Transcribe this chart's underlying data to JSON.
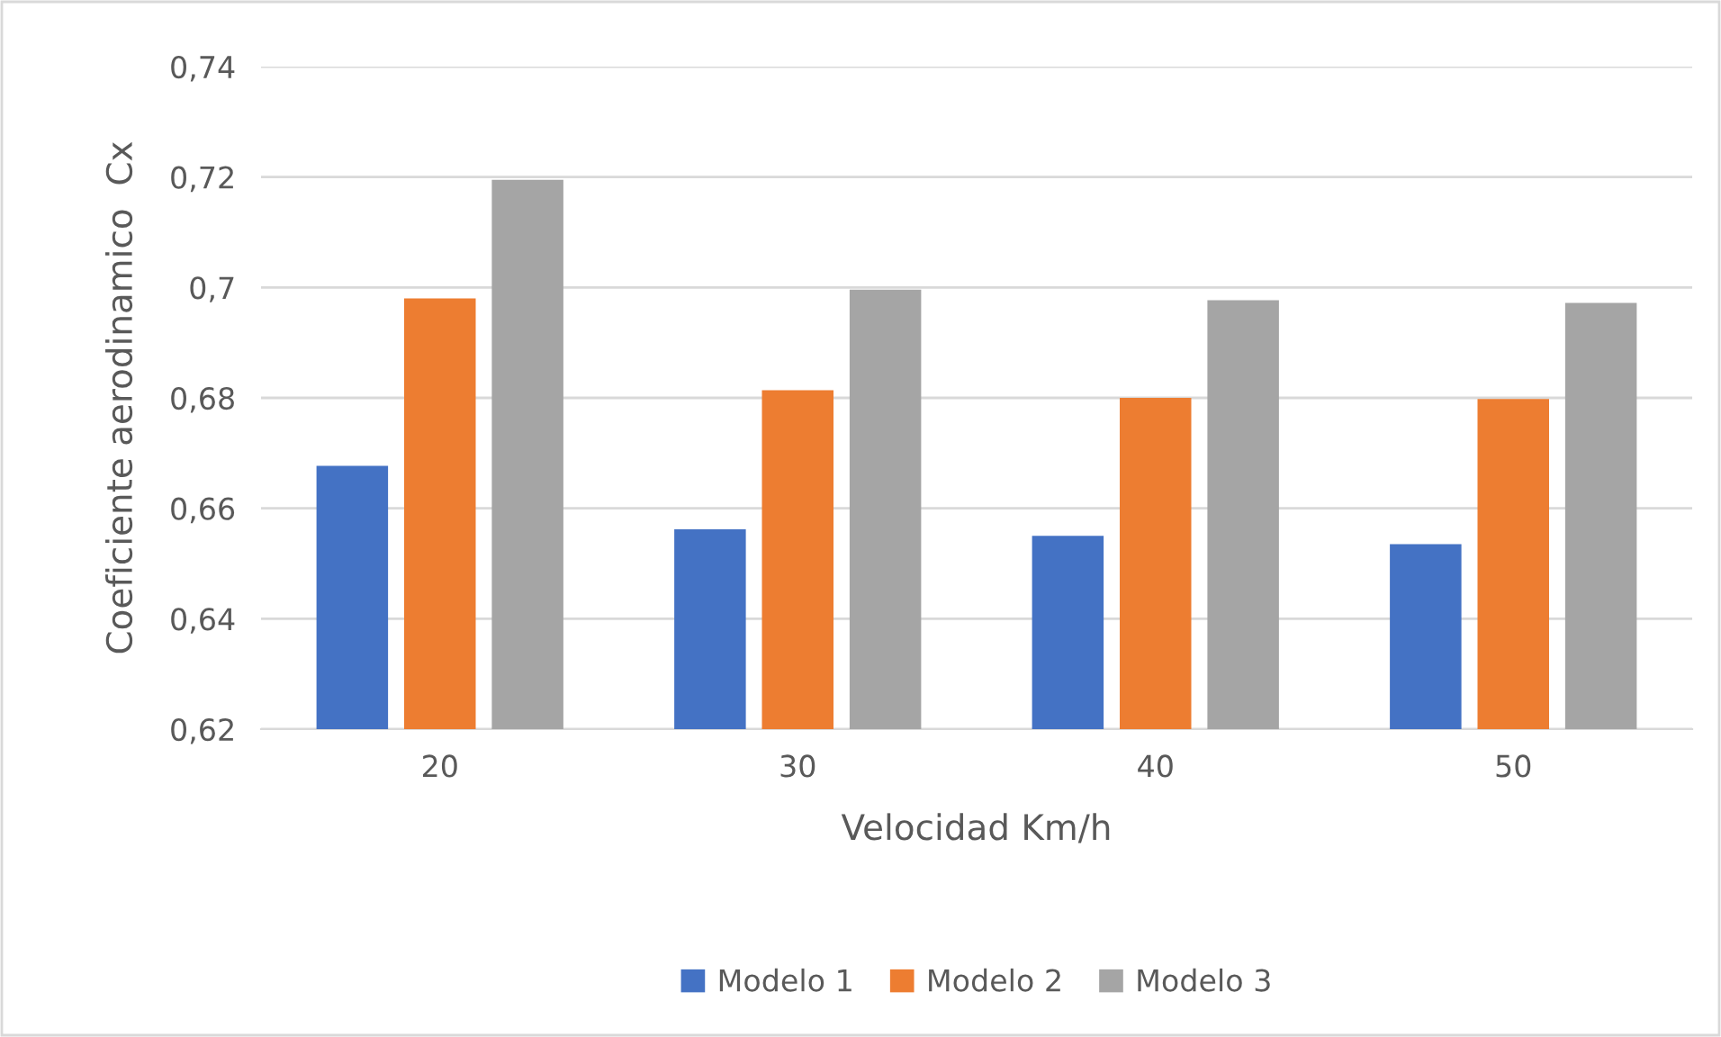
{
  "chart_data": {
    "type": "bar",
    "xlabel": "Velocidad Km/h",
    "ylabel": "Coeficiente aerodinamico  Cx",
    "categories": [
      "20",
      "30",
      "40",
      "50"
    ],
    "series": [
      {
        "name": "Modelo 1",
        "color": "#4472c4",
        "values": [
          0.6677,
          0.6562,
          0.655,
          0.6535
        ]
      },
      {
        "name": "Modelo 2",
        "color": "#ed7d31",
        "values": [
          0.698,
          0.6814,
          0.68,
          0.6798
        ]
      },
      {
        "name": "Modelo 3",
        "color": "#a5a5a5",
        "values": [
          0.7195,
          0.6996,
          0.6977,
          0.6972
        ]
      }
    ],
    "ylim": [
      0.62,
      0.74
    ],
    "yticks": [
      {
        "value": 0.62,
        "label": "0,62"
      },
      {
        "value": 0.64,
        "label": "0,64"
      },
      {
        "value": 0.66,
        "label": "0,66"
      },
      {
        "value": 0.68,
        "label": "0,68"
      },
      {
        "value": 0.7,
        "label": "0,7"
      },
      {
        "value": 0.72,
        "label": "0,72"
      },
      {
        "value": 0.74,
        "label": "0,74"
      }
    ],
    "grid": "y",
    "legend": "bottom"
  }
}
